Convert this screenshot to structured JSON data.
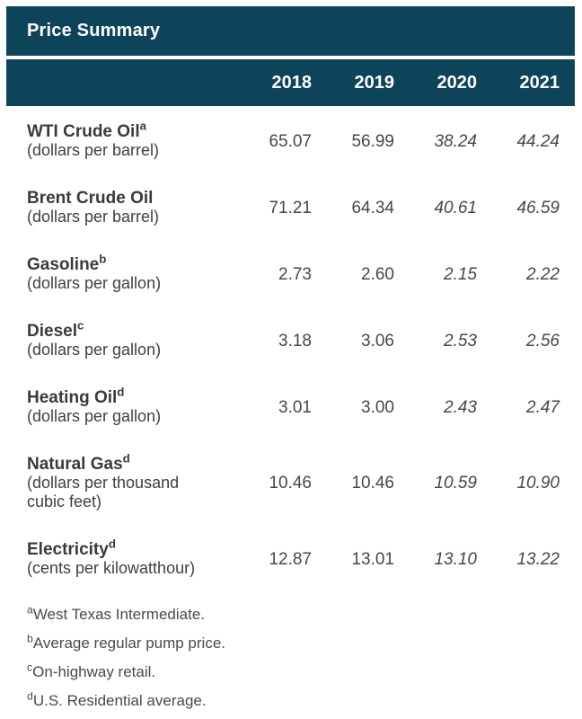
{
  "table": {
    "title": "Price Summary",
    "years": [
      "2018",
      "2019",
      "2020",
      "2021"
    ],
    "rows": [
      {
        "name": "WTI Crude Oil",
        "superscript": "a",
        "unit": "(dollars per barrel)",
        "values": [
          "65.07",
          "56.99",
          "38.24",
          "44.24"
        ]
      },
      {
        "name": "Brent Crude Oil",
        "superscript": "",
        "unit": "(dollars per barrel)",
        "values": [
          "71.21",
          "64.34",
          "40.61",
          "46.59"
        ]
      },
      {
        "name": "Gasoline",
        "superscript": "b",
        "unit": "(dollars per gallon)",
        "values": [
          "2.73",
          "2.60",
          "2.15",
          "2.22"
        ]
      },
      {
        "name": "Diesel",
        "superscript": "c",
        "unit": "(dollars per gallon)",
        "values": [
          "3.18",
          "3.06",
          "2.53",
          "2.56"
        ]
      },
      {
        "name": "Heating Oil",
        "superscript": "d",
        "unit": "(dollars per gallon)",
        "values": [
          "3.01",
          "3.00",
          "2.43",
          "2.47"
        ]
      },
      {
        "name": "Natural Gas",
        "superscript": "d",
        "unit": "(dollars per thousand\ncubic feet)",
        "values": [
          "10.46",
          "10.46",
          "10.59",
          "10.90"
        ]
      },
      {
        "name": "Electricity",
        "superscript": "d",
        "unit": "(cents per kilowatthour)",
        "values": [
          "12.87",
          "13.01",
          "13.10",
          "13.22"
        ]
      }
    ]
  },
  "footnotes": [
    {
      "marker": "a",
      "text": "West Texas Intermediate."
    },
    {
      "marker": "b",
      "text": "Average regular pump price."
    },
    {
      "marker": "c",
      "text": "On-highway retail."
    },
    {
      "marker": "d",
      "text": "U.S. Residential average."
    }
  ],
  "colors": {
    "header_background": "#0e4459",
    "header_text": "#ffffff",
    "body_text": "#474747"
  },
  "chart_data": {
    "type": "table",
    "title": "Price Summary",
    "columns": [
      "2018",
      "2019",
      "2020",
      "2021"
    ],
    "italic_columns": [
      "2020",
      "2021"
    ],
    "rows": [
      {
        "label": "WTI Crude Oil (dollars per barrel)",
        "values": [
          65.07,
          56.99,
          38.24,
          44.24
        ]
      },
      {
        "label": "Brent Crude Oil (dollars per barrel)",
        "values": [
          71.21,
          64.34,
          40.61,
          46.59
        ]
      },
      {
        "label": "Gasoline (dollars per gallon)",
        "values": [
          2.73,
          2.6,
          2.15,
          2.22
        ]
      },
      {
        "label": "Diesel (dollars per gallon)",
        "values": [
          3.18,
          3.06,
          2.53,
          2.56
        ]
      },
      {
        "label": "Heating Oil (dollars per gallon)",
        "values": [
          3.01,
          3.0,
          2.43,
          2.47
        ]
      },
      {
        "label": "Natural Gas (dollars per thousand cubic feet)",
        "values": [
          10.46,
          10.46,
          10.59,
          10.9
        ]
      },
      {
        "label": "Electricity (cents per kilowatthour)",
        "values": [
          12.87,
          13.01,
          13.1,
          13.22
        ]
      }
    ],
    "notes": [
      "a West Texas Intermediate.",
      "b Average regular pump price.",
      "c On-highway retail.",
      "d U.S. Residential average."
    ]
  }
}
